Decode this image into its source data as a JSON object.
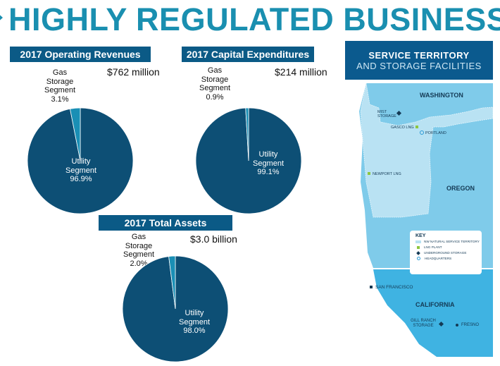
{
  "title": "HIGHLY REGULATED BUSINESS",
  "colors": {
    "title": "#1a8fb0",
    "header_bar": "#0b5a86",
    "utility": "#0d4f75",
    "gas_storage": "#1a8fb5"
  },
  "chart_data": [
    {
      "type": "pie",
      "title": "2017 Operating Revenues",
      "total": "$762 million",
      "slices": [
        {
          "name": "Utility Segment",
          "value": 96.9,
          "label": "96.9%"
        },
        {
          "name": "Gas Storage Segment",
          "value": 3.1,
          "label": "3.1%"
        }
      ]
    },
    {
      "type": "pie",
      "title": "2017 Capital Expenditures",
      "total": "$214 million",
      "slices": [
        {
          "name": "Utility Segment",
          "value": 99.1,
          "label": "99.1%"
        },
        {
          "name": "Gas Storage Segment",
          "value": 0.9,
          "label": "0.9%"
        }
      ]
    },
    {
      "type": "pie",
      "title": "2017 Total Assets",
      "total": "$3.0 billion",
      "slices": [
        {
          "name": "Utility Segment",
          "value": 98.0,
          "label": "98.0%"
        },
        {
          "name": "Gas Storage Segment",
          "value": 2.0,
          "label": "2.0%"
        }
      ]
    }
  ],
  "map": {
    "header1": "SERVICE TERRITORY",
    "header2": "AND STORAGE FACILITIES",
    "states": [
      "WASHINGTON",
      "OREGON",
      "CALIFORNIA"
    ],
    "places": {
      "mist": "MIST STORAGE",
      "gasco": "GASCO LNG",
      "portland": "PORTLAND",
      "newport": "NEWPORT LNG",
      "sf": "SAN FRANCISCO",
      "gill": "GILL RANCH STORAGE",
      "fresno": "FRESNO"
    },
    "key": {
      "title": "KEY",
      "items": [
        "NW NATURAL SERVICE TERRITORY",
        "LNG PLANT",
        "UNDERGROUND STORAGE",
        "HEADQUARTERS"
      ]
    }
  }
}
